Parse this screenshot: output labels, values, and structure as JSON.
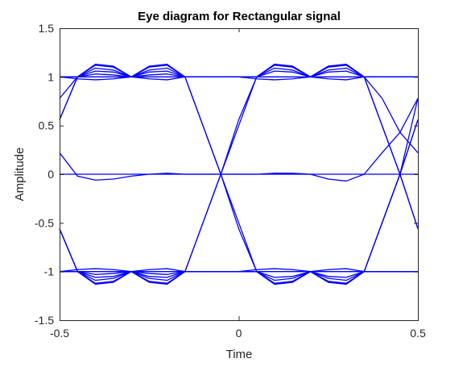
{
  "chart_data": {
    "type": "line",
    "title": "Eye diagram for Rectangular signal",
    "xlabel": "Time",
    "ylabel": "Amplitude",
    "xlim": [
      -0.5,
      0.5
    ],
    "ylim": [
      -1.5,
      1.5
    ],
    "xticks": [
      -0.5,
      0,
      0.5
    ],
    "xtick_labels": [
      "-0.5",
      "0",
      "0.5"
    ],
    "yticks": [
      -1.5,
      -1,
      -0.5,
      0,
      0.5,
      1,
      1.5
    ],
    "ytick_labels": [
      "-1.5",
      "-1",
      "-0.5",
      "0",
      "0.5",
      "1",
      "1.5"
    ],
    "grid": false,
    "line_color": "#0000ff",
    "axes_color": "#262626",
    "traces": [
      {
        "x": [
          -0.5,
          -0.45,
          -0.4,
          -0.35,
          -0.3,
          -0.25,
          -0.2,
          -0.15,
          -0.1,
          -0.05,
          0,
          0.05,
          0.1,
          0.15,
          0.2,
          0.25,
          0.3,
          0.35,
          0.4,
          0.45,
          0.5
        ],
        "y": [
          0.78,
          1.0,
          1.13,
          1.11,
          1.0,
          1.11,
          1.13,
          1.0,
          0.5,
          0.0,
          -0.5,
          -1.0,
          -1.13,
          -1.11,
          -1.0,
          -1.11,
          -1.13,
          -1.0,
          -0.5,
          0.0,
          0.56
        ]
      },
      {
        "x": [
          -0.5,
          -0.45,
          -0.4,
          -0.35,
          -0.3,
          -0.25,
          -0.2,
          -0.15,
          -0.1,
          -0.05,
          0,
          0.05,
          0.1,
          0.15,
          0.2,
          0.25,
          0.3,
          0.35,
          0.4,
          0.45,
          0.5
        ],
        "y": [
          0.56,
          1.0,
          1.12,
          1.1,
          1.0,
          1.1,
          1.12,
          1.0,
          1.0,
          1.0,
          1.0,
          1.0,
          1.12,
          1.1,
          1.0,
          1.1,
          1.12,
          1.0,
          0.5,
          0.0,
          -0.56
        ]
      },
      {
        "x": [
          -0.5,
          -0.45,
          -0.4,
          -0.35,
          -0.3,
          -0.25,
          -0.2,
          -0.15,
          -0.1,
          -0.05,
          0,
          0.05,
          0.1,
          0.15,
          0.2,
          0.25,
          0.3,
          0.35,
          0.4,
          0.45,
          0.5
        ],
        "y": [
          0.56,
          1.0,
          1.09,
          1.07,
          1.0,
          1.07,
          1.09,
          1.0,
          0.5,
          0.0,
          0.56,
          1.0,
          1.09,
          1.07,
          1.0,
          1.07,
          1.09,
          1.0,
          1.0,
          1.0,
          1.0
        ]
      },
      {
        "x": [
          -0.5,
          -0.45,
          -0.4,
          -0.35,
          -0.3,
          -0.25,
          -0.2,
          -0.15,
          -0.1,
          -0.05,
          0,
          0.05,
          0.1,
          0.15,
          0.2,
          0.25,
          0.3,
          0.35,
          0.4,
          0.45,
          0.5
        ],
        "y": [
          1.0,
          1.0,
          1.03,
          1.02,
          1.0,
          1.02,
          1.03,
          1.0,
          1.0,
          1.0,
          1.0,
          1.0,
          1.13,
          1.11,
          1.0,
          1.11,
          1.13,
          1.0,
          0.78,
          0.43,
          0.22
        ]
      },
      {
        "x": [
          -0.5,
          -0.45,
          -0.4,
          -0.35,
          -0.3,
          -0.25,
          -0.2,
          -0.15,
          -0.1,
          -0.05,
          0,
          0.05,
          0.1,
          0.15,
          0.2,
          0.25,
          0.3,
          0.35,
          0.4,
          0.45,
          0.5
        ],
        "y": [
          1.0,
          0.98,
          0.97,
          0.98,
          1.0,
          0.98,
          0.97,
          1.0,
          1.0,
          1.0,
          1.0,
          0.98,
          0.97,
          0.98,
          1.0,
          0.98,
          0.97,
          1.0,
          1.0,
          1.0,
          1.0
        ]
      },
      {
        "x": [
          -0.5,
          -0.45,
          -0.4,
          -0.35,
          -0.3,
          -0.25,
          -0.2,
          -0.15,
          -0.1,
          -0.05,
          0,
          0.05,
          0.1,
          0.15,
          0.2,
          0.25,
          0.3,
          0.35,
          0.4,
          0.45,
          0.5
        ],
        "y": [
          1.0,
          1.0,
          1.06,
          1.05,
          1.0,
          1.05,
          1.06,
          1.0,
          1.0,
          1.0,
          1.0,
          1.0,
          1.06,
          1.05,
          1.0,
          1.05,
          1.06,
          1.0,
          1.0,
          1.0,
          1.0
        ]
      },
      {
        "x": [
          -0.5,
          -0.45,
          -0.4,
          -0.35,
          -0.3,
          -0.25,
          -0.2,
          -0.15,
          -0.1,
          -0.05,
          0,
          0.05,
          0.1,
          0.15,
          0.2,
          0.25,
          0.3,
          0.35,
          0.4,
          0.45,
          0.5
        ],
        "y": [
          -0.56,
          -1.0,
          -1.13,
          -1.11,
          -1.0,
          -1.11,
          -1.13,
          -1.0,
          -0.5,
          0.0,
          0.5,
          1.0,
          1.13,
          1.11,
          1.0,
          1.11,
          1.13,
          1.0,
          0.5,
          0.0,
          -0.56
        ]
      },
      {
        "x": [
          -0.5,
          -0.45,
          -0.4,
          -0.35,
          -0.3,
          -0.25,
          -0.2,
          -0.15,
          -0.1,
          -0.05,
          0,
          0.05,
          0.1,
          0.15,
          0.2,
          0.25,
          0.3,
          0.35,
          0.4,
          0.45,
          0.5
        ],
        "y": [
          -0.56,
          -1.0,
          -1.12,
          -1.1,
          -1.0,
          -1.1,
          -1.12,
          -1.0,
          -1.0,
          -1.0,
          -1.0,
          -1.0,
          -1.12,
          -1.1,
          -1.0,
          -1.1,
          -1.12,
          -1.0,
          -0.5,
          0.0,
          0.56
        ]
      },
      {
        "x": [
          -0.5,
          -0.45,
          -0.4,
          -0.35,
          -0.3,
          -0.25,
          -0.2,
          -0.15,
          -0.1,
          -0.05,
          0,
          0.05,
          0.1,
          0.15,
          0.2,
          0.25,
          0.3,
          0.35,
          0.4,
          0.45,
          0.5
        ],
        "y": [
          -0.56,
          -1.0,
          -1.09,
          -1.07,
          -1.0,
          -1.07,
          -1.09,
          -1.0,
          -0.5,
          0.0,
          -0.56,
          -1.0,
          -1.09,
          -1.07,
          -1.0,
          -1.07,
          -1.09,
          -1.0,
          -1.0,
          -1.0,
          -1.0
        ]
      },
      {
        "x": [
          -0.5,
          -0.45,
          -0.4,
          -0.35,
          -0.3,
          -0.25,
          -0.2,
          -0.15,
          -0.1,
          -0.05,
          0,
          0.05,
          0.1,
          0.15,
          0.2,
          0.25,
          0.3,
          0.35,
          0.4,
          0.45,
          0.5
        ],
        "y": [
          -1.0,
          -1.0,
          -1.03,
          -1.02,
          -1.0,
          -1.02,
          -1.03,
          -1.0,
          -1.0,
          -1.0,
          -1.0,
          -1.0,
          -1.13,
          -1.11,
          -1.0,
          -1.11,
          -1.13,
          -1.0,
          -0.5,
          0.0,
          0.78
        ]
      },
      {
        "x": [
          -0.5,
          -0.45,
          -0.4,
          -0.35,
          -0.3,
          -0.25,
          -0.2,
          -0.15,
          -0.1,
          -0.05,
          0,
          0.05,
          0.1,
          0.15,
          0.2,
          0.25,
          0.3,
          0.35,
          0.4,
          0.45,
          0.5
        ],
        "y": [
          -1.0,
          -0.98,
          -0.97,
          -0.98,
          -1.0,
          -0.98,
          -0.97,
          -1.0,
          -1.0,
          -1.0,
          -1.0,
          -0.98,
          -0.97,
          -0.98,
          -1.0,
          -0.98,
          -0.97,
          -1.0,
          -1.0,
          -1.0,
          -1.0
        ]
      },
      {
        "x": [
          -0.5,
          -0.45,
          -0.4,
          -0.35,
          -0.3,
          -0.25,
          -0.2,
          -0.15,
          -0.1,
          -0.05,
          0,
          0.05,
          0.1,
          0.15,
          0.2,
          0.25,
          0.3,
          0.35,
          0.4,
          0.45,
          0.5
        ],
        "y": [
          -1.0,
          -1.0,
          -1.06,
          -1.05,
          -1.0,
          -1.05,
          -1.06,
          -1.0,
          -1.0,
          -1.0,
          -1.0,
          -1.0,
          -1.06,
          -1.05,
          -1.0,
          -1.05,
          -1.06,
          -1.0,
          -1.0,
          -1.0,
          -1.0
        ]
      },
      {
        "x": [
          -0.5,
          -0.45,
          -0.4,
          -0.35,
          -0.3,
          -0.25,
          -0.2,
          -0.15,
          -0.1,
          -0.05,
          0,
          0.05,
          0.1,
          0.15,
          0.2,
          0.25,
          0.3,
          0.35,
          0.4,
          0.45,
          0.5
        ],
        "y": [
          0.22,
          -0.02,
          -0.06,
          -0.05,
          -0.02,
          0.0,
          0.01,
          0.0,
          0.0,
          0.0,
          0.0,
          0.0,
          0.01,
          0.01,
          0.0,
          -0.05,
          -0.07,
          0.0,
          0.22,
          0.43,
          0.78
        ]
      },
      {
        "x": [
          -0.5,
          -0.45,
          -0.4,
          -0.35,
          -0.3,
          -0.25,
          -0.2,
          -0.15,
          -0.1,
          -0.05,
          0,
          0.05,
          0.1,
          0.15,
          0.2,
          0.25,
          0.3,
          0.35,
          0.4,
          0.45,
          0.5
        ],
        "y": [
          0.0,
          0.0,
          0.0,
          0.0,
          0.0,
          0.0,
          0.0,
          0.0,
          0.0,
          0.0,
          0.0,
          0.0,
          0.0,
          0.0,
          0.0,
          0.0,
          0.0,
          0.0,
          0.0,
          0.0,
          0.0
        ]
      },
      {
        "x": [
          -0.5,
          -0.45,
          -0.4,
          -0.35,
          -0.3,
          -0.25,
          -0.2,
          -0.15,
          -0.1,
          -0.05,
          0,
          0.05,
          0.1,
          0.15,
          0.2,
          0.25,
          0.3,
          0.35,
          0.4,
          0.45,
          0.5
        ],
        "y": [
          1.0,
          1.0,
          1.0,
          1.0,
          1.0,
          1.0,
          1.0,
          1.0,
          1.0,
          1.0,
          1.0,
          1.0,
          1.0,
          1.0,
          1.0,
          1.0,
          1.0,
          1.0,
          1.0,
          1.0,
          1.0
        ]
      },
      {
        "x": [
          -0.5,
          -0.45,
          -0.4,
          -0.35,
          -0.3,
          -0.25,
          -0.2,
          -0.15,
          -0.1,
          -0.05,
          0,
          0.05,
          0.1,
          0.15,
          0.2,
          0.25,
          0.3,
          0.35,
          0.4,
          0.45,
          0.5
        ],
        "y": [
          -1.0,
          -1.0,
          -1.0,
          -1.0,
          -1.0,
          -1.0,
          -1.0,
          -1.0,
          -1.0,
          -1.0,
          -1.0,
          -1.0,
          -1.0,
          -1.0,
          -1.0,
          -1.0,
          -1.0,
          -1.0,
          -1.0,
          -1.0,
          -1.0
        ]
      }
    ]
  }
}
